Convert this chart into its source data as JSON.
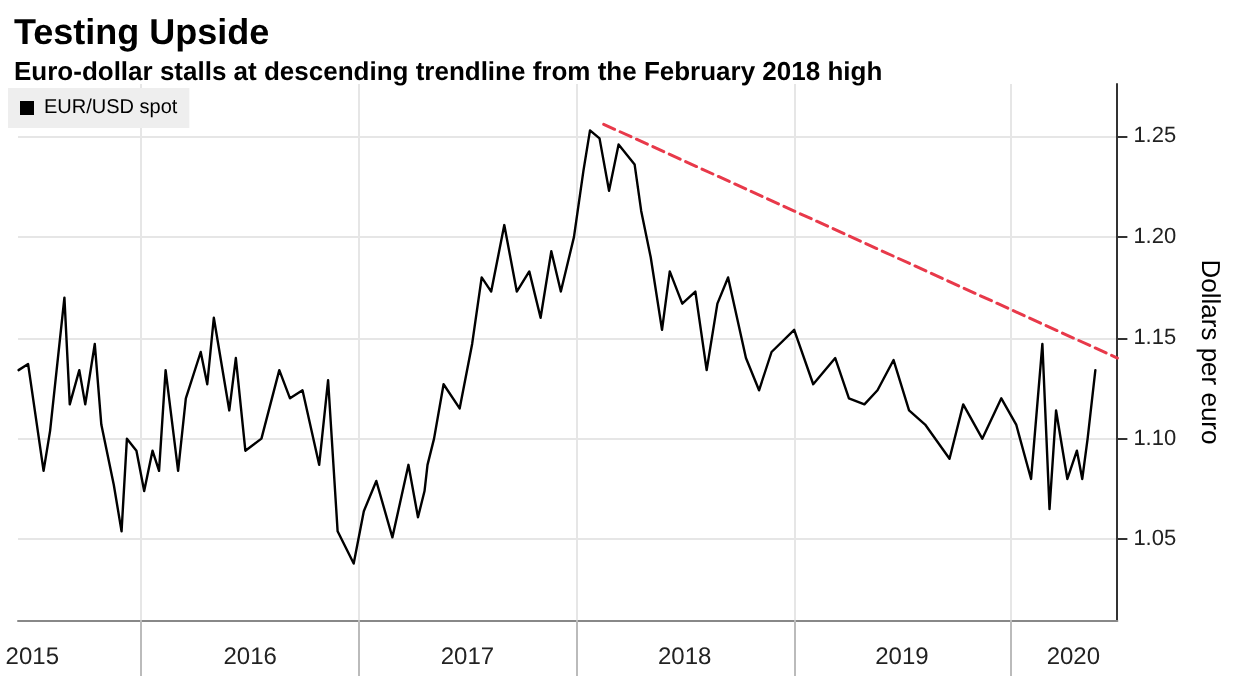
{
  "chart_data": {
    "type": "line",
    "title": "Testing Upside",
    "subtitle": "Euro-dollar stalls at descending trendline from the February 2018 high",
    "ylabel": "Dollars per euro",
    "xlim": [
      "2015-06-08",
      "2020-06-28"
    ],
    "ylim": [
      1.01,
      1.276
    ],
    "yticks": [
      1.05,
      {
        "value": 1.1,
        "label": "1.10"
      },
      1.15,
      {
        "value": 1.2,
        "label": "1.20"
      },
      1.25
    ],
    "xticks": [
      {
        "value": "2015-07-02",
        "label": "2015"
      },
      {
        "value": "2016-01-01",
        "label": null
      },
      {
        "value": "2016-07-02",
        "label": "2016"
      },
      {
        "value": "2017-01-01",
        "label": null
      },
      {
        "value": "2017-07-02",
        "label": "2017"
      },
      {
        "value": "2018-01-01",
        "label": null
      },
      {
        "value": "2018-07-02",
        "label": "2018"
      },
      {
        "value": "2019-01-01",
        "label": null
      },
      {
        "value": "2019-07-02",
        "label": "2019"
      },
      {
        "value": "2020-01-01",
        "label": null
      },
      {
        "value": "2020-04-15",
        "label": "2020"
      }
    ],
    "grid": true,
    "legend": "top left",
    "series": [
      {
        "name": "EUR/USD spot",
        "color": "#000000",
        "x": [
          "2015-06-09",
          "2015-06-25",
          "2015-07-21",
          "2015-08-01",
          "2015-08-25",
          "2015-09-03",
          "2015-09-19",
          "2015-09-29",
          "2015-10-15",
          "2015-10-26",
          "2015-11-16",
          "2015-11-29",
          "2015-12-08",
          "2015-12-24",
          "2016-01-06",
          "2016-01-20",
          "2016-01-31",
          "2016-02-11",
          "2016-03-03",
          "2016-03-16",
          "2016-04-10",
          "2016-04-21",
          "2016-05-02",
          "2016-05-28",
          "2016-06-08",
          "2016-06-24",
          "2016-07-21",
          "2016-08-20",
          "2016-09-07",
          "2016-09-28",
          "2016-10-26",
          "2016-11-10",
          "2016-11-26",
          "2016-12-23",
          "2017-01-09",
          "2017-01-30",
          "2017-02-26",
          "2017-03-25",
          "2017-04-10",
          "2017-04-21",
          "2017-04-26",
          "2017-05-07",
          "2017-05-23",
          "2017-06-19",
          "2017-07-10",
          "2017-07-26",
          "2017-08-11",
          "2017-09-02",
          "2017-09-23",
          "2017-10-14",
          "2017-11-02",
          "2017-11-20",
          "2017-12-06",
          "2017-12-28",
          "2018-01-13",
          "2018-01-24",
          "2018-02-09",
          "2018-02-25",
          "2018-03-13",
          "2018-04-09",
          "2018-04-20",
          "2018-05-06",
          "2018-05-25",
          "2018-06-07",
          "2018-06-28",
          "2018-07-20",
          "2018-08-08",
          "2018-08-26",
          "2018-09-13",
          "2018-10-13",
          "2018-11-04",
          "2018-11-25",
          "2019-01-02",
          "2019-02-03",
          "2019-03-12",
          "2019-04-04",
          "2019-04-30",
          "2019-05-22",
          "2019-06-18",
          "2019-07-14",
          "2019-08-10",
          "2019-09-20",
          "2019-10-13",
          "2019-11-14",
          "2019-12-16",
          "2020-01-10",
          "2020-02-04",
          "2020-02-23",
          "2020-03-06",
          "2020-03-17",
          "2020-04-05",
          "2020-04-21",
          "2020-04-30",
          "2020-05-09",
          "2020-05-22"
        ],
        "values": [
          1.134,
          1.137,
          1.084,
          1.104,
          1.17,
          1.117,
          1.134,
          1.117,
          1.147,
          1.107,
          1.077,
          1.054,
          1.1,
          1.094,
          1.074,
          1.094,
          1.084,
          1.134,
          1.084,
          1.12,
          1.143,
          1.127,
          1.16,
          1.114,
          1.14,
          1.094,
          1.1,
          1.134,
          1.12,
          1.124,
          1.087,
          1.129,
          1.054,
          1.038,
          1.064,
          1.079,
          1.051,
          1.087,
          1.061,
          1.074,
          1.087,
          1.1,
          1.127,
          1.115,
          1.147,
          1.18,
          1.173,
          1.206,
          1.173,
          1.183,
          1.16,
          1.193,
          1.173,
          1.2,
          1.233,
          1.253,
          1.249,
          1.223,
          1.246,
          1.236,
          1.213,
          1.19,
          1.154,
          1.183,
          1.167,
          1.173,
          1.134,
          1.167,
          1.18,
          1.14,
          1.124,
          1.143,
          1.154,
          1.127,
          1.14,
          1.12,
          1.117,
          1.124,
          1.139,
          1.114,
          1.107,
          1.09,
          1.117,
          1.1,
          1.12,
          1.107,
          1.08,
          1.147,
          1.065,
          1.114,
          1.08,
          1.094,
          1.08,
          1.1,
          1.134
        ]
      },
      {
        "color": "#e8394a",
        "line_style": "dashed",
        "x": [
          "2018-02-16",
          "2020-06-28"
        ],
        "values": [
          1.256,
          1.14
        ]
      }
    ]
  }
}
